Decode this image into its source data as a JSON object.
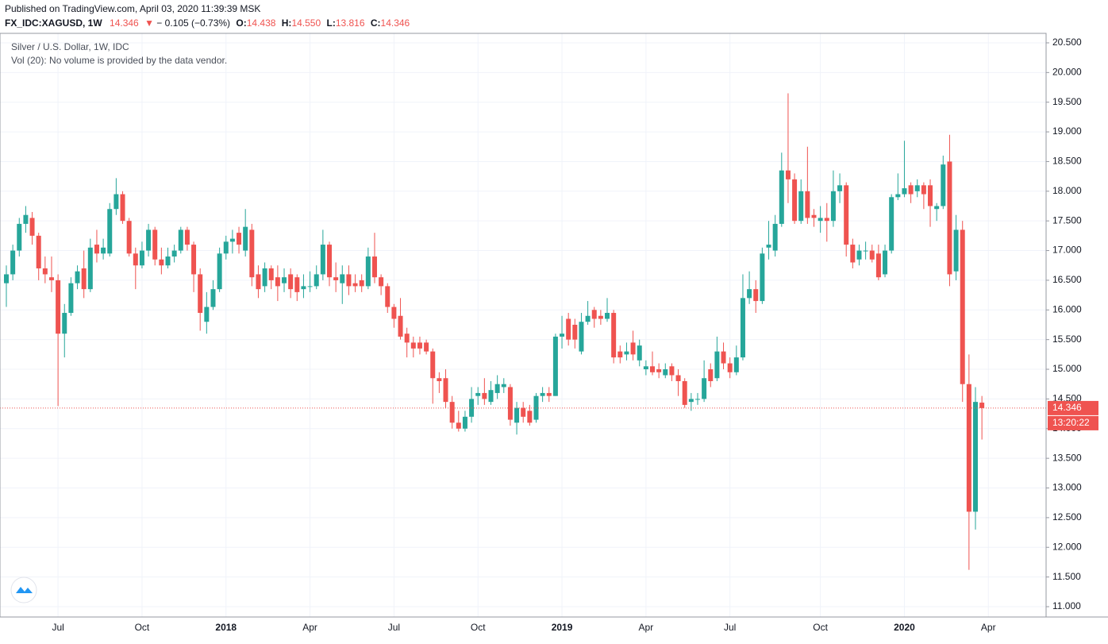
{
  "header": {
    "published": "Published on TradingView.com, April 03, 2020 11:39:39 MSK",
    "symbol": "FX_IDC:XAGUSD, 1W",
    "change": "− 0.105 (−0.73%)",
    "o_label": "O:",
    "h_label": "H:",
    "h_value": "14.550",
    "l_label": "L:",
    "c_label": "C:"
  },
  "chart_data": {
    "type": "candlestick",
    "title": "Silver / U.S. Dollar, 1W, IDC",
    "subtitle": "Vol (20): No volume is provided by the data vendor.",
    "countdown": "13:20:22",
    "up_color": "#26a69a",
    "down_color": "#ef5350",
    "last_price_color": "#ef5350",
    "categories": [
      null,
      null,
      null,
      null,
      null,
      null,
      null,
      null,
      "Jul",
      null,
      null,
      null,
      null,
      null,
      null,
      null,
      null,
      null,
      null,
      null,
      null,
      "Oct",
      null,
      null,
      null,
      null,
      null,
      null,
      null,
      null,
      null,
      null,
      null,
      null,
      "2018",
      null,
      null,
      null,
      null,
      null,
      null,
      null,
      null,
      null,
      null,
      null,
      null,
      "Apr",
      null,
      null,
      null,
      null,
      null,
      null,
      null,
      null,
      null,
      null,
      null,
      null,
      "Jul",
      null,
      null,
      null,
      null,
      null,
      null,
      null,
      null,
      null,
      null,
      null,
      null,
      "Oct",
      null,
      null,
      null,
      null,
      null,
      null,
      null,
      null,
      null,
      null,
      null,
      null,
      "2019",
      null,
      null,
      null,
      null,
      null,
      null,
      null,
      null,
      null,
      null,
      null,
      null,
      "Apr",
      null,
      null,
      null,
      null,
      null,
      null,
      null,
      null,
      null,
      null,
      null,
      null,
      "Jul",
      null,
      null,
      null,
      null,
      null,
      null,
      null,
      null,
      null,
      null,
      null,
      null,
      null,
      "Oct",
      null,
      null,
      null,
      null,
      null,
      null,
      null,
      null,
      null,
      null,
      null,
      null,
      "2020",
      null,
      null,
      null,
      null,
      null,
      null,
      null,
      null,
      null,
      null,
      null,
      null,
      "Apr"
    ],
    "open": [
      16.45,
      16.6,
      17.0,
      17.45,
      17.55,
      17.25,
      16.7,
      16.55,
      16.5,
      15.6,
      15.95,
      16.45,
      16.7,
      16.35,
      17.1,
      16.95,
      16.95,
      17.7,
      17.95,
      17.5,
      16.95,
      16.75,
      17.0,
      17.35,
      16.85,
      16.75,
      16.9,
      17.0,
      17.35,
      17.1,
      16.6,
      15.8,
      16.05,
      16.35,
      16.95,
      17.15,
      17.3,
      17.0,
      17.35,
      16.6,
      16.4,
      16.7,
      16.55,
      16.45,
      16.6,
      16.55,
      16.35,
      16.4,
      16.4,
      16.6,
      17.1,
      16.55,
      16.45,
      16.6,
      16.45,
      16.5,
      16.4,
      16.9,
      16.55,
      16.4,
      16.05,
      15.9,
      15.6,
      15.45,
      15.45,
      15.45,
      15.3,
      14.85,
      14.85,
      14.45,
      14.1,
      14.0,
      14.2,
      14.55,
      14.6,
      14.45,
      14.6,
      14.7,
      14.7,
      14.1,
      14.35,
      14.3,
      14.15,
      14.55,
      14.6,
      14.55,
      15.55,
      15.85,
      15.75,
      15.3,
      15.8,
      16.0,
      15.9,
      15.85,
      15.95,
      15.3,
      15.25,
      15.45,
      15.15,
      15.0,
      15.05,
      15.0,
      14.9,
      15.05,
      14.9,
      14.8,
      14.45,
      14.5,
      14.5,
      15.0,
      14.85,
      15.3,
      15.1,
      14.95,
      15.2,
      16.2,
      16.35,
      16.15,
      17.05,
      17.0,
      17.45,
      18.35,
      18.2,
      17.5,
      18.0,
      17.6,
      17.5,
      17.55,
      17.5,
      18.0,
      18.1,
      17.1,
      16.85,
      17.0,
      17.0,
      16.95,
      16.6,
      17.0,
      17.9,
      17.95,
      18.1,
      18.0,
      18.1,
      18.1,
      17.7,
      17.75,
      18.5,
      16.65,
      17.35,
      14.75,
      12.6,
      14.438,
      null
    ],
    "high": [
      16.75,
      17.1,
      17.55,
      17.75,
      17.65,
      17.3,
      16.9,
      16.9,
      16.6,
      16.1,
      16.55,
      16.75,
      17.0,
      17.2,
      17.35,
      17.2,
      17.8,
      18.22,
      18.0,
      17.55,
      17.05,
      17.15,
      17.45,
      17.4,
      17.05,
      17.05,
      17.1,
      17.4,
      17.4,
      17.15,
      16.7,
      16.3,
      16.5,
      17.05,
      17.25,
      17.35,
      17.4,
      17.7,
      17.45,
      16.75,
      16.8,
      16.75,
      16.75,
      16.7,
      16.7,
      16.6,
      16.6,
      16.65,
      16.75,
      17.35,
      17.15,
      16.8,
      16.75,
      16.75,
      16.6,
      16.6,
      17.05,
      17.3,
      16.6,
      16.45,
      16.1,
      16.2,
      15.7,
      15.55,
      15.55,
      15.5,
      15.35,
      14.95,
      15.0,
      14.55,
      14.3,
      14.3,
      14.7,
      14.7,
      14.85,
      14.8,
      14.9,
      14.85,
      14.75,
      14.45,
      14.45,
      14.4,
      14.6,
      14.7,
      14.7,
      15.6,
      15.9,
      15.95,
      15.85,
      15.95,
      16.15,
      16.05,
      16.0,
      16.2,
      16.0,
      15.4,
      15.45,
      15.65,
      15.5,
      15.15,
      15.3,
      15.1,
      15.1,
      15.1,
      15.0,
      14.85,
      14.6,
      14.6,
      15.15,
      15.1,
      15.55,
      15.45,
      15.2,
      15.4,
      16.6,
      16.65,
      16.5,
      17.05,
      17.5,
      17.6,
      18.65,
      19.65,
      18.3,
      18.2,
      18.75,
      17.7,
      17.75,
      17.8,
      18.35,
      18.3,
      18.15,
      17.2,
      17.1,
      17.15,
      17.1,
      17.1,
      17.1,
      17.95,
      18.3,
      18.85,
      18.15,
      18.2,
      18.15,
      18.2,
      17.8,
      18.6,
      18.95,
      17.6,
      17.5,
      15.25,
      14.7,
      14.55,
      null
    ],
    "low": [
      16.05,
      16.5,
      16.9,
      17.3,
      17.1,
      16.5,
      16.45,
      16.3,
      14.38,
      15.2,
      15.9,
      16.35,
      16.2,
      16.3,
      16.8,
      16.85,
      16.9,
      17.6,
      17.45,
      16.9,
      16.35,
      16.7,
      16.9,
      16.75,
      16.6,
      16.7,
      16.8,
      16.95,
      17.0,
      16.3,
      15.65,
      15.6,
      16.0,
      16.3,
      16.85,
      16.95,
      16.95,
      16.9,
      16.4,
      16.2,
      16.3,
      16.35,
      16.15,
      16.3,
      16.2,
      16.15,
      16.2,
      16.3,
      16.35,
      16.5,
      16.4,
      16.3,
      16.1,
      16.25,
      16.3,
      16.3,
      16.35,
      16.45,
      16.25,
      15.95,
      15.7,
      15.5,
      15.2,
      15.2,
      15.25,
      15.25,
      14.42,
      14.6,
      14.35,
      14.0,
      13.95,
      13.95,
      14.1,
      14.4,
      14.4,
      14.4,
      14.5,
      14.6,
      14.05,
      13.9,
      14.1,
      14.05,
      14.1,
      14.45,
      14.45,
      14.55,
      15.35,
      15.4,
      15.35,
      15.25,
      15.75,
      15.7,
      15.75,
      15.8,
      15.1,
      15.1,
      15.15,
      15.15,
      15.05,
      14.9,
      14.9,
      14.85,
      14.85,
      14.8,
      14.55,
      14.35,
      14.3,
      14.4,
      14.45,
      14.7,
      14.8,
      15.0,
      14.85,
      14.9,
      15.15,
      16.1,
      15.95,
      16.1,
      16.85,
      16.9,
      17.4,
      17.8,
      17.45,
      17.45,
      17.45,
      17.4,
      17.3,
      17.15,
      17.4,
      17.8,
      16.9,
      16.7,
      16.75,
      16.85,
      16.8,
      16.5,
      16.55,
      16.95,
      17.85,
      17.9,
      17.8,
      17.9,
      17.7,
      17.4,
      17.5,
      17.7,
      16.4,
      16.5,
      14.45,
      11.62,
      12.3,
      13.816,
      null
    ],
    "close": [
      16.6,
      17.0,
      17.45,
      17.6,
      17.25,
      16.7,
      16.6,
      16.5,
      15.6,
      15.95,
      16.45,
      16.65,
      16.35,
      17.05,
      16.95,
      17.05,
      17.7,
      17.95,
      17.5,
      16.95,
      16.75,
      17.0,
      17.35,
      16.85,
      16.75,
      16.9,
      17.0,
      17.35,
      17.1,
      16.6,
      15.95,
      16.05,
      16.35,
      16.95,
      17.15,
      17.2,
      17.1,
      17.4,
      16.55,
      16.35,
      16.7,
      16.5,
      16.4,
      16.55,
      16.35,
      16.3,
      16.4,
      16.4,
      16.6,
      17.1,
      16.55,
      16.5,
      16.6,
      16.4,
      16.4,
      16.4,
      16.9,
      16.55,
      16.4,
      16.05,
      15.85,
      15.55,
      15.45,
      15.35,
      15.35,
      15.3,
      14.85,
      14.8,
      14.45,
      14.1,
      14.0,
      14.2,
      14.5,
      14.6,
      14.5,
      14.65,
      14.75,
      14.75,
      14.15,
      14.35,
      14.2,
      14.1,
      14.55,
      14.6,
      14.55,
      15.55,
      15.6,
      15.5,
      15.5,
      15.8,
      15.9,
      15.85,
      15.85,
      15.95,
      15.2,
      15.2,
      15.3,
      15.25,
      15.4,
      15.05,
      14.95,
      14.95,
      15.0,
      14.9,
      14.8,
      14.4,
      14.5,
      14.5,
      14.85,
      14.8,
      15.3,
      15.1,
      14.95,
      15.2,
      16.2,
      16.35,
      16.15,
      16.95,
      17.1,
      17.45,
      18.35,
      18.2,
      17.5,
      18.0,
      17.55,
      17.55,
      17.55,
      17.5,
      18.0,
      18.1,
      17.1,
      16.8,
      17.0,
      17.0,
      16.85,
      16.55,
      17.0,
      17.9,
      17.95,
      18.05,
      17.95,
      18.1,
      17.95,
      17.75,
      17.75,
      18.45,
      16.6,
      17.35,
      14.75,
      12.6,
      14.45,
      14.346,
      null
    ],
    "ylim": [
      10.826,
      20.66
    ],
    "yticks": [
      {
        "value": 11,
        "label": "11.000"
      },
      {
        "value": 11.5,
        "label": "11.500"
      },
      {
        "value": 12,
        "label": "12.000"
      },
      {
        "value": 12.5,
        "label": "12.500"
      },
      {
        "value": 13,
        "label": "13.000"
      },
      {
        "value": 13.5,
        "label": "13.500"
      },
      {
        "value": 14,
        "label": "14.000"
      },
      {
        "value": 14.5,
        "label": "14.500"
      },
      {
        "value": 15,
        "label": "15.000"
      },
      {
        "value": 15.5,
        "label": "15.500"
      },
      {
        "value": 16,
        "label": "16.000"
      },
      {
        "value": 16.5,
        "label": "16.500"
      },
      {
        "value": 17,
        "label": "17.000"
      },
      {
        "value": 17.5,
        "label": "17.500"
      },
      {
        "value": 18,
        "label": "18.000"
      },
      {
        "value": 18.5,
        "label": "18.500"
      },
      {
        "value": 19,
        "label": "19.000"
      },
      {
        "value": 19.5,
        "label": "19.500"
      },
      {
        "value": 20,
        "label": "20.000"
      },
      {
        "value": 20.5,
        "label": "20.500"
      }
    ],
    "grid": true
  }
}
